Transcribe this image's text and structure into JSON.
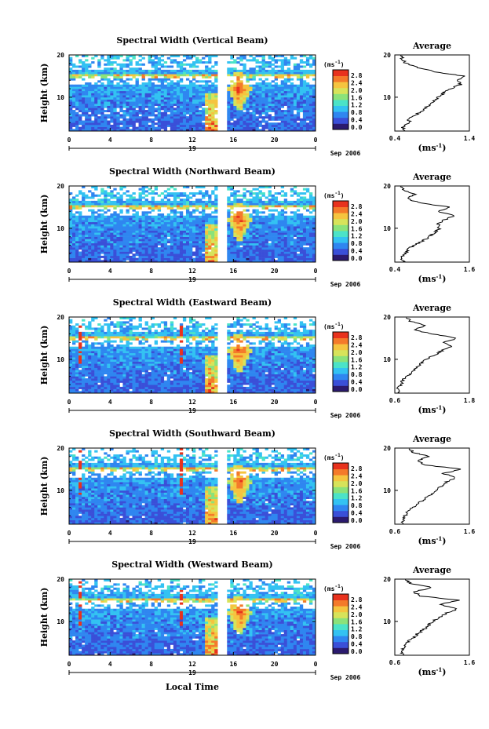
{
  "figure": {
    "xlabel_global": "Local Time",
    "date_label": "Sep 2006",
    "day_label": "19",
    "colorbar": {
      "unit": "(ms",
      "unit_exp": "-1",
      "unit_close": ")",
      "ticks": [
        "2.8",
        "2.4",
        "2.0",
        "1.6",
        "1.2",
        "0.8",
        "0.4",
        "0.0"
      ],
      "stops": [
        "#2b1a6e",
        "#3a4fd8",
        "#2f86f0",
        "#33c2f2",
        "#4be3c8",
        "#8be27a",
        "#d7e35a",
        "#f5c43f",
        "#f47a2a",
        "#e8321d"
      ]
    },
    "avg_label": "Average",
    "avg_xunit": "(ms",
    "avg_xunit_exp": "-1",
    "avg_xunit_close": ")",
    "ylabel": "Height (km)"
  },
  "chart_data": [
    {
      "type": "heatmap",
      "title": "Spectral Width (Vertical Beam)",
      "ylabel": "Height (km)",
      "x_ticks": [
        "0",
        "4",
        "8",
        "12",
        "16",
        "20",
        "0"
      ],
      "y_ticks": [
        "20",
        "10"
      ],
      "xlim": [
        0,
        24
      ],
      "ylim": [
        2,
        20
      ],
      "gap_hours": [
        14.5,
        15.3
      ],
      "avg": {
        "title": "Average",
        "x_ticks": [
          "0.4",
          "1.4"
        ],
        "xlim": [
          0.4,
          1.4
        ],
        "y_ticks": [
          "20",
          "10"
        ],
        "profile": [
          [
            2,
            0.55
          ],
          [
            3,
            0.5
          ],
          [
            4,
            0.6
          ],
          [
            5,
            0.58
          ],
          [
            6,
            0.7
          ],
          [
            7,
            0.78
          ],
          [
            8,
            0.85
          ],
          [
            9,
            0.92
          ],
          [
            10,
            0.98
          ],
          [
            11,
            1.05
          ],
          [
            12,
            1.15
          ],
          [
            13,
            1.28
          ],
          [
            14,
            1.25
          ],
          [
            15,
            1.32
          ],
          [
            16,
            0.95
          ],
          [
            17,
            0.7
          ],
          [
            18,
            0.55
          ],
          [
            19,
            0.5
          ],
          [
            20,
            0.48
          ]
        ]
      }
    },
    {
      "type": "heatmap",
      "title": "Spectral Width (Northward Beam)",
      "ylabel": "Height (km)",
      "x_ticks": [
        "0",
        "4",
        "8",
        "12",
        "16",
        "20",
        "0"
      ],
      "y_ticks": [
        "20",
        "10"
      ],
      "xlim": [
        0,
        24
      ],
      "ylim": [
        2,
        20
      ],
      "gap_hours": [
        14.6,
        15.4
      ],
      "avg": {
        "title": "Average",
        "x_ticks": [
          "0.4",
          "1.6"
        ],
        "xlim": [
          0.4,
          1.6
        ],
        "y_ticks": [
          "20",
          "10"
        ],
        "profile": [
          [
            2,
            0.55
          ],
          [
            3,
            0.5
          ],
          [
            4,
            0.58
          ],
          [
            5,
            0.6
          ],
          [
            6,
            0.72
          ],
          [
            7,
            0.85
          ],
          [
            8,
            0.95
          ],
          [
            9,
            1.05
          ],
          [
            10,
            1.12
          ],
          [
            11,
            1.1
          ],
          [
            12,
            1.2
          ],
          [
            13,
            1.35
          ],
          [
            14,
            1.1
          ],
          [
            15,
            1.28
          ],
          [
            16,
            0.8
          ],
          [
            17,
            0.6
          ],
          [
            18,
            0.72
          ],
          [
            19,
            0.55
          ],
          [
            20,
            0.5
          ]
        ]
      }
    },
    {
      "type": "heatmap",
      "title": "Spectral Width (Eastward Beam)",
      "ylabel": "Height (km)",
      "x_ticks": [
        "0",
        "4",
        "8",
        "12",
        "16",
        "20",
        "0"
      ],
      "y_ticks": [
        "20",
        "10"
      ],
      "xlim": [
        0,
        24
      ],
      "ylim": [
        2,
        20
      ],
      "gap_hours": [
        14.6,
        15.4
      ],
      "avg": {
        "title": "Average",
        "x_ticks": [
          "0.6",
          "1.8"
        ],
        "xlim": [
          0.6,
          1.8
        ],
        "y_ticks": [
          "20",
          "10"
        ],
        "profile": [
          [
            2,
            0.68
          ],
          [
            3,
            0.65
          ],
          [
            4,
            0.7
          ],
          [
            5,
            0.72
          ],
          [
            6,
            0.8
          ],
          [
            7,
            0.88
          ],
          [
            8,
            0.95
          ],
          [
            9,
            1.02
          ],
          [
            10,
            1.1
          ],
          [
            11,
            1.25
          ],
          [
            12,
            1.35
          ],
          [
            13,
            1.5
          ],
          [
            14,
            1.4
          ],
          [
            15,
            1.6
          ],
          [
            16,
            1.2
          ],
          [
            17,
            0.9
          ],
          [
            18,
            1.1
          ],
          [
            19,
            0.85
          ],
          [
            20,
            0.8
          ]
        ]
      }
    },
    {
      "type": "heatmap",
      "title": "Spectral Width (Southward Beam)",
      "ylabel": "Height (km)",
      "x_ticks": [
        "0",
        "4",
        "8",
        "12",
        "16",
        "20",
        "0"
      ],
      "y_ticks": [
        "20",
        "10"
      ],
      "xlim": [
        0,
        24
      ],
      "ylim": [
        2,
        20
      ],
      "gap_hours": [
        14.6,
        15.4
      ],
      "avg": {
        "title": "Average",
        "x_ticks": [
          "0.6",
          "1.6"
        ],
        "xlim": [
          0.6,
          1.6
        ],
        "y_ticks": [
          "20",
          "10"
        ],
        "profile": [
          [
            2,
            0.72
          ],
          [
            3,
            0.7
          ],
          [
            4,
            0.74
          ],
          [
            5,
            0.78
          ],
          [
            6,
            0.85
          ],
          [
            7,
            0.92
          ],
          [
            8,
            1.0
          ],
          [
            9,
            1.08
          ],
          [
            10,
            1.15
          ],
          [
            11,
            1.22
          ],
          [
            12,
            1.3
          ],
          [
            13,
            1.42
          ],
          [
            14,
            1.25
          ],
          [
            15,
            1.5
          ],
          [
            16,
            1.0
          ],
          [
            17,
            0.9
          ],
          [
            18,
            1.05
          ],
          [
            19,
            0.85
          ],
          [
            20,
            0.8
          ]
        ]
      }
    },
    {
      "type": "heatmap",
      "title": "Spectral Width (Westward Beam)",
      "ylabel": "Height (km)",
      "x_ticks": [
        "0",
        "4",
        "8",
        "12",
        "16",
        "20",
        "0"
      ],
      "y_ticks": [
        "20",
        "10"
      ],
      "xlim": [
        0,
        24
      ],
      "ylim": [
        2,
        20
      ],
      "gap_hours": [
        14.6,
        15.4
      ],
      "avg": {
        "title": "Average",
        "x_ticks": [
          "0.6",
          "1.6"
        ],
        "xlim": [
          0.6,
          1.6
        ],
        "y_ticks": [
          "20",
          "10"
        ],
        "profile": [
          [
            2,
            0.7
          ],
          [
            3,
            0.68
          ],
          [
            4,
            0.72
          ],
          [
            5,
            0.76
          ],
          [
            6,
            0.84
          ],
          [
            7,
            0.9
          ],
          [
            8,
            0.98
          ],
          [
            9,
            1.05
          ],
          [
            10,
            1.1
          ],
          [
            11,
            1.2
          ],
          [
            12,
            1.3
          ],
          [
            13,
            1.45
          ],
          [
            14,
            1.2
          ],
          [
            15,
            1.45
          ],
          [
            16,
            0.95
          ],
          [
            17,
            0.85
          ],
          [
            18,
            1.1
          ],
          [
            19,
            0.8
          ],
          [
            20,
            0.75
          ]
        ]
      }
    }
  ]
}
